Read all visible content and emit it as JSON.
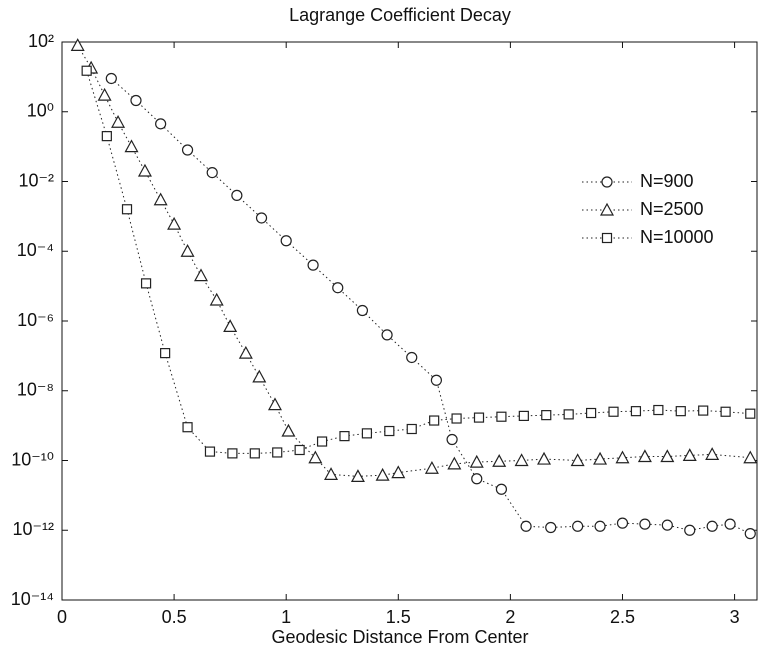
{
  "chart_data": {
    "type": "line",
    "title": "Lagrange Coefficient Decay",
    "x_label": "Geodesic Distance From Center",
    "xlim": [
      0,
      3.1
    ],
    "xticks": [
      0,
      0.5,
      1,
      1.5,
      2,
      2.5,
      3
    ],
    "ylim": [
      1e-14,
      100
    ],
    "log_y": true,
    "yticks": [
      {
        "value": 100,
        "label": "10²"
      },
      {
        "value": 1,
        "label": "10⁰"
      },
      {
        "value": 0.01,
        "label": "10⁻²"
      },
      {
        "value": 0.0001,
        "label": "10⁻⁴"
      },
      {
        "value": 1e-06,
        "label": "10⁻⁶"
      },
      {
        "value": 1e-08,
        "label": "10⁻⁸"
      },
      {
        "value": 1e-10,
        "label": "10⁻¹⁰"
      },
      {
        "value": 1e-12,
        "label": "10⁻¹²"
      },
      {
        "value": 1e-14,
        "label": "10⁻¹⁴"
      }
    ],
    "legend": "upper right",
    "series": [
      {
        "name": "N=900",
        "marker": "circle",
        "color": "#222222",
        "x": [
          0.22,
          0.33,
          0.44,
          0.56,
          0.67,
          0.78,
          0.89,
          1.0,
          1.12,
          1.23,
          1.34,
          1.45,
          1.56,
          1.67,
          1.74,
          1.85,
          1.96,
          2.07,
          2.18,
          2.3,
          2.4,
          2.5,
          2.6,
          2.7,
          2.8,
          2.9,
          2.98,
          3.07
        ],
        "values": [
          9,
          2.1,
          0.45,
          0.08,
          0.018,
          0.004,
          0.0009,
          0.0002,
          4e-05,
          9e-06,
          2e-06,
          4e-07,
          9e-08,
          2e-08,
          4e-10,
          3e-11,
          1.5e-11,
          1.3e-12,
          1.2e-12,
          1.3e-12,
          1.3e-12,
          1.6e-12,
          1.5e-12,
          1.4e-12,
          1e-12,
          1.3e-12,
          1.5e-12,
          8e-13
        ]
      },
      {
        "name": "N=2500",
        "marker": "triangle",
        "color": "#222222",
        "x": [
          0.07,
          0.13,
          0.19,
          0.25,
          0.31,
          0.37,
          0.44,
          0.5,
          0.56,
          0.62,
          0.69,
          0.75,
          0.82,
          0.88,
          0.95,
          1.01,
          1.13,
          1.2,
          1.32,
          1.43,
          1.5,
          1.65,
          1.75,
          1.85,
          1.95,
          2.05,
          2.15,
          2.3,
          2.4,
          2.5,
          2.6,
          2.7,
          2.8,
          2.9,
          3.07
        ],
        "values": [
          80,
          18,
          3,
          0.5,
          0.1,
          0.02,
          0.003,
          0.0006,
          0.0001,
          2e-05,
          4e-06,
          7e-07,
          1.2e-07,
          2.5e-08,
          4e-09,
          7e-10,
          1.2e-10,
          4e-11,
          3.5e-11,
          3.8e-11,
          4.5e-11,
          6e-11,
          8e-11,
          9e-11,
          9.5e-11,
          1e-10,
          1.1e-10,
          1e-10,
          1.1e-10,
          1.2e-10,
          1.3e-10,
          1.3e-10,
          1.4e-10,
          1.5e-10,
          1.2e-10
        ]
      },
      {
        "name": "N=10000",
        "marker": "square",
        "color": "#222222",
        "x": [
          0.11,
          0.2,
          0.29,
          0.375,
          0.46,
          0.56,
          0.66,
          0.76,
          0.86,
          0.96,
          1.06,
          1.16,
          1.26,
          1.36,
          1.46,
          1.56,
          1.66,
          1.76,
          1.86,
          1.96,
          2.06,
          2.16,
          2.26,
          2.36,
          2.46,
          2.56,
          2.66,
          2.76,
          2.86,
          2.96,
          3.07
        ],
        "values": [
          15,
          0.2,
          0.0016,
          1.2e-05,
          1.2e-07,
          9e-10,
          1.8e-10,
          1.6e-10,
          1.6e-10,
          1.7e-10,
          2e-10,
          3.5e-10,
          5e-10,
          6e-10,
          7e-10,
          8e-10,
          1.4e-09,
          1.6e-09,
          1.7e-09,
          1.8e-09,
          1.9e-09,
          2e-09,
          2.1e-09,
          2.3e-09,
          2.5e-09,
          2.6e-09,
          2.8e-09,
          2.6e-09,
          2.7e-09,
          2.5e-09,
          2.2e-09
        ]
      }
    ]
  }
}
